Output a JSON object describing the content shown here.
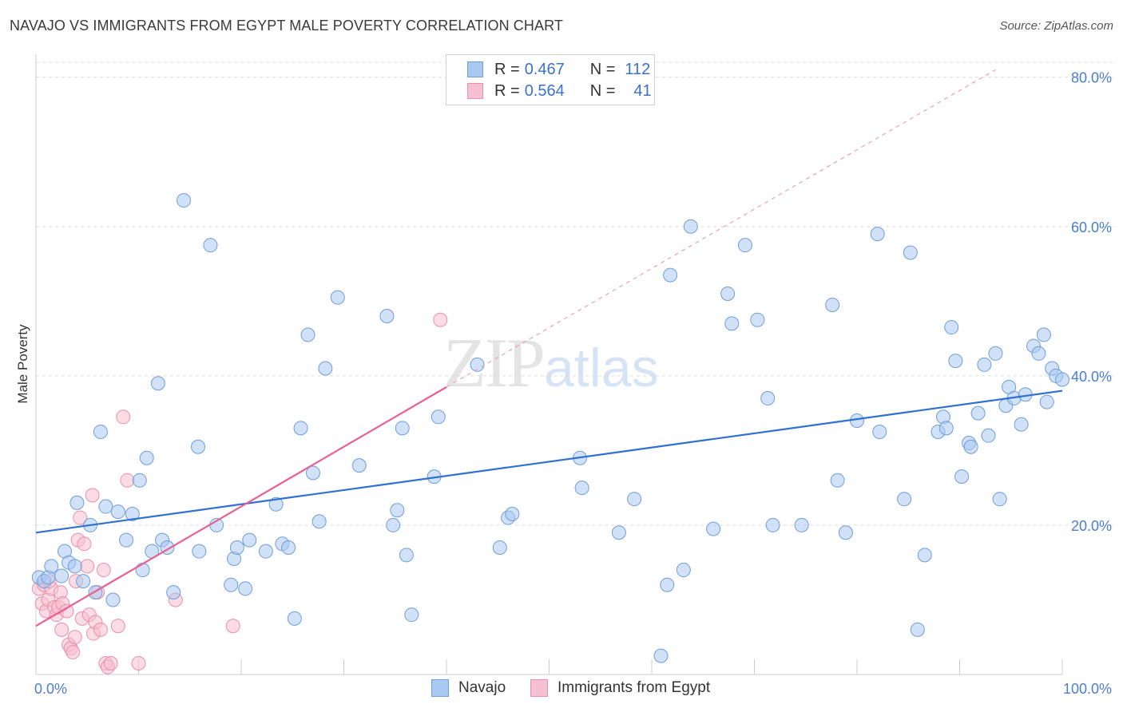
{
  "title": "NAVAJO VS IMMIGRANTS FROM EGYPT MALE POVERTY CORRELATION CHART",
  "source": "Source: ZipAtlas.com",
  "watermark": {
    "zip": "ZIP",
    "atlas": "atlas"
  },
  "legend": {
    "rows": [
      {
        "r_label": "R =",
        "r_value": "0.467",
        "n_label": "N =",
        "n_value": "112",
        "color": "#a9c8f2",
        "border": "#6f9ed8"
      },
      {
        "r_label": "R =",
        "r_value": "0.564",
        "n_label": "N =",
        "n_value": "41",
        "color": "#f7c0d0",
        "border": "#e890ab"
      }
    ]
  },
  "bottom_legend": {
    "navajo": "Navajo",
    "egypt": "Immigrants from Egypt"
  },
  "chart_data": {
    "type": "scatter",
    "ylabel": "Male Poverty",
    "xlim": [
      0,
      100
    ],
    "ylim": [
      0,
      82
    ],
    "x_tick_labels": [
      "0.0%",
      "100.0%"
    ],
    "y_ticks": [
      20,
      40,
      60,
      80
    ],
    "y_tick_labels": [
      "20.0%",
      "40.0%",
      "60.0%",
      "80.0%"
    ],
    "colors": {
      "navajo": "#3070d0",
      "egypt": "#e86090",
      "navajo_fill": "#a9c8f2",
      "egypt_fill": "#f7c0d0"
    },
    "series": [
      {
        "name": "Navajo",
        "trend": {
          "x": [
            0,
            100
          ],
          "y": [
            19.0,
            38.0
          ]
        },
        "points": [
          [
            0.3,
            13.0
          ],
          [
            0.8,
            12.5
          ],
          [
            1.2,
            13.0
          ],
          [
            1.5,
            14.5
          ],
          [
            2.5,
            13.2
          ],
          [
            2.8,
            16.5
          ],
          [
            3.2,
            15.0
          ],
          [
            4.0,
            23.0
          ],
          [
            3.8,
            14.5
          ],
          [
            4.6,
            12.5
          ],
          [
            5.3,
            20.0
          ],
          [
            5.8,
            11.0
          ],
          [
            6.3,
            32.5
          ],
          [
            6.8,
            22.5
          ],
          [
            7.5,
            10.0
          ],
          [
            8.0,
            21.8
          ],
          [
            8.8,
            18.0
          ],
          [
            9.4,
            21.5
          ],
          [
            10.1,
            26.0
          ],
          [
            10.4,
            14.0
          ],
          [
            10.8,
            29.0
          ],
          [
            11.3,
            16.5
          ],
          [
            11.9,
            39.0
          ],
          [
            12.3,
            18.0
          ],
          [
            12.8,
            17.0
          ],
          [
            13.4,
            11.0
          ],
          [
            14.4,
            63.5
          ],
          [
            15.9,
            16.5
          ],
          [
            15.8,
            30.5
          ],
          [
            17.0,
            57.5
          ],
          [
            17.6,
            20.0
          ],
          [
            19.0,
            12.0
          ],
          [
            19.3,
            15.5
          ],
          [
            19.6,
            17.0
          ],
          [
            20.4,
            11.5
          ],
          [
            20.8,
            18.0
          ],
          [
            22.4,
            16.5
          ],
          [
            23.4,
            22.8
          ],
          [
            24.0,
            17.5
          ],
          [
            24.6,
            17.0
          ],
          [
            25.2,
            7.5
          ],
          [
            25.8,
            33.0
          ],
          [
            26.5,
            45.5
          ],
          [
            27.0,
            27.0
          ],
          [
            27.6,
            20.5
          ],
          [
            28.2,
            41.0
          ],
          [
            29.4,
            50.5
          ],
          [
            31.5,
            28.0
          ],
          [
            34.2,
            48.0
          ],
          [
            34.8,
            20.0
          ],
          [
            35.2,
            22.0
          ],
          [
            35.7,
            33.0
          ],
          [
            36.1,
            16.0
          ],
          [
            36.6,
            8.0
          ],
          [
            38.8,
            26.5
          ],
          [
            39.2,
            34.5
          ],
          [
            43.0,
            41.5
          ],
          [
            45.2,
            17.0
          ],
          [
            46.0,
            21.0
          ],
          [
            46.4,
            21.5
          ],
          [
            53.0,
            29.0
          ],
          [
            53.2,
            25.0
          ],
          [
            56.8,
            19.0
          ],
          [
            58.3,
            23.5
          ],
          [
            60.9,
            2.5
          ],
          [
            61.5,
            12.0
          ],
          [
            61.8,
            53.5
          ],
          [
            63.1,
            14.0
          ],
          [
            63.8,
            60.0
          ],
          [
            66.0,
            19.5
          ],
          [
            67.4,
            51.0
          ],
          [
            67.8,
            47.0
          ],
          [
            69.1,
            57.5
          ],
          [
            70.3,
            47.5
          ],
          [
            71.8,
            20.0
          ],
          [
            71.3,
            37.0
          ],
          [
            74.6,
            20.0
          ],
          [
            77.6,
            49.5
          ],
          [
            78.1,
            26.0
          ],
          [
            78.9,
            19.0
          ],
          [
            80.0,
            34.0
          ],
          [
            82.0,
            59.0
          ],
          [
            82.2,
            32.5
          ],
          [
            84.6,
            23.5
          ],
          [
            85.2,
            56.5
          ],
          [
            85.9,
            6.0
          ],
          [
            86.6,
            16.0
          ],
          [
            87.9,
            32.5
          ],
          [
            88.4,
            34.5
          ],
          [
            88.7,
            33.0
          ],
          [
            89.2,
            46.5
          ],
          [
            89.6,
            42.0
          ],
          [
            90.2,
            26.5
          ],
          [
            90.9,
            31.0
          ],
          [
            91.1,
            30.5
          ],
          [
            91.8,
            35.0
          ],
          [
            92.4,
            41.5
          ],
          [
            92.8,
            32.0
          ],
          [
            93.5,
            43.0
          ],
          [
            93.9,
            23.5
          ],
          [
            94.5,
            36.0
          ],
          [
            94.8,
            38.5
          ],
          [
            95.3,
            37.0
          ],
          [
            96.0,
            33.5
          ],
          [
            96.4,
            37.5
          ],
          [
            97.2,
            44.0
          ],
          [
            97.7,
            43.0
          ],
          [
            98.2,
            45.5
          ],
          [
            98.5,
            36.5
          ],
          [
            99.0,
            41.0
          ],
          [
            99.4,
            40.0
          ],
          [
            100.0,
            39.5
          ]
        ]
      },
      {
        "name": "Immigrants from Egypt",
        "trend": {
          "x": [
            0,
            40
          ],
          "y": [
            6.5,
            38.5
          ]
        },
        "trend_ext": {
          "x": [
            40,
            93.5
          ],
          "y": [
            38.5,
            81.0
          ]
        },
        "points": [
          [
            0.3,
            11.5
          ],
          [
            0.6,
            9.5
          ],
          [
            0.8,
            12.0
          ],
          [
            1.0,
            8.5
          ],
          [
            1.2,
            10.0
          ],
          [
            1.5,
            11.5
          ],
          [
            1.8,
            9.0
          ],
          [
            2.0,
            8.0
          ],
          [
            2.2,
            9.0
          ],
          [
            2.4,
            11.0
          ],
          [
            2.5,
            6.0
          ],
          [
            2.6,
            9.5
          ],
          [
            3.0,
            8.5
          ],
          [
            3.2,
            4.0
          ],
          [
            3.4,
            3.5
          ],
          [
            3.6,
            3.0
          ],
          [
            3.8,
            5.0
          ],
          [
            3.9,
            12.5
          ],
          [
            4.1,
            18.0
          ],
          [
            4.3,
            21.0
          ],
          [
            4.5,
            7.5
          ],
          [
            4.7,
            17.5
          ],
          [
            5.0,
            14.5
          ],
          [
            5.2,
            8.0
          ],
          [
            5.5,
            24.0
          ],
          [
            5.6,
            5.5
          ],
          [
            5.8,
            7.0
          ],
          [
            6.0,
            11.0
          ],
          [
            6.3,
            6.0
          ],
          [
            6.6,
            14.0
          ],
          [
            6.8,
            1.5
          ],
          [
            7.0,
            1.0
          ],
          [
            7.3,
            1.5
          ],
          [
            8.0,
            6.5
          ],
          [
            8.5,
            34.5
          ],
          [
            8.9,
            26.0
          ],
          [
            10.0,
            1.5
          ],
          [
            13.6,
            10.0
          ],
          [
            19.2,
            6.5
          ],
          [
            39.4,
            47.5
          ],
          [
            1.3,
            12.5
          ]
        ]
      }
    ]
  }
}
